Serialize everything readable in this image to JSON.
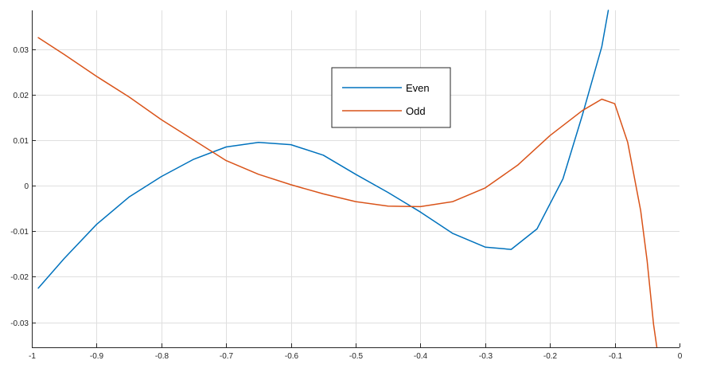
{
  "chart_data": {
    "type": "line",
    "title": "",
    "xlabel": "",
    "ylabel": "",
    "xlim": [
      -1,
      0
    ],
    "ylim": [
      -0.0355,
      0.0385
    ],
    "grid": true,
    "legend_position": "top-center",
    "xticks": [
      -1,
      -0.9,
      -0.8,
      -0.7,
      -0.6,
      -0.5,
      -0.4,
      -0.3,
      -0.2,
      -0.1,
      0
    ],
    "xtick_labels": [
      "-1",
      "-0.9",
      "-0.8",
      "-0.7",
      "-0.6",
      "-0.5",
      "-0.4",
      "-0.3",
      "-0.2",
      "-0.1",
      "0"
    ],
    "yticks": [
      -0.03,
      -0.02,
      -0.01,
      0,
      0.01,
      0.02,
      0.03
    ],
    "ytick_labels": [
      "-0.03",
      "-0.02",
      "-0.01",
      "0",
      "0.01",
      "0.02",
      "0.03"
    ],
    "series": [
      {
        "name": "Even",
        "color": "#0072BD",
        "x": [
          -0.99,
          -0.95,
          -0.9,
          -0.85,
          -0.8,
          -0.75,
          -0.7,
          -0.65,
          -0.6,
          -0.55,
          -0.5,
          -0.45,
          -0.4,
          -0.35,
          -0.3,
          -0.26,
          -0.22,
          -0.18,
          -0.15,
          -0.12,
          -0.11
        ],
        "y": [
          -0.0225,
          -0.016,
          -0.0085,
          -0.0025,
          0.002,
          0.0058,
          0.0085,
          0.0095,
          0.009,
          0.0067,
          0.0025,
          -0.0015,
          -0.0058,
          -0.0105,
          -0.0135,
          -0.014,
          -0.0095,
          0.0015,
          0.0155,
          0.0305,
          0.0385
        ]
      },
      {
        "name": "Odd",
        "color": "#D95319",
        "x": [
          -0.99,
          -0.95,
          -0.9,
          -0.85,
          -0.8,
          -0.75,
          -0.7,
          -0.65,
          -0.6,
          -0.55,
          -0.5,
          -0.45,
          -0.4,
          -0.35,
          -0.3,
          -0.25,
          -0.2,
          -0.15,
          -0.12,
          -0.1,
          -0.08,
          -0.06,
          -0.05,
          -0.04,
          -0.035
        ],
        "y": [
          0.0325,
          0.0288,
          0.024,
          0.0195,
          0.0145,
          0.01,
          0.0055,
          0.0025,
          0.0002,
          -0.0018,
          -0.0035,
          -0.0045,
          -0.0046,
          -0.0035,
          -0.0005,
          0.0045,
          0.011,
          0.0165,
          0.019,
          0.018,
          0.0095,
          -0.0055,
          -0.0165,
          -0.0305,
          -0.0355
        ]
      }
    ]
  }
}
